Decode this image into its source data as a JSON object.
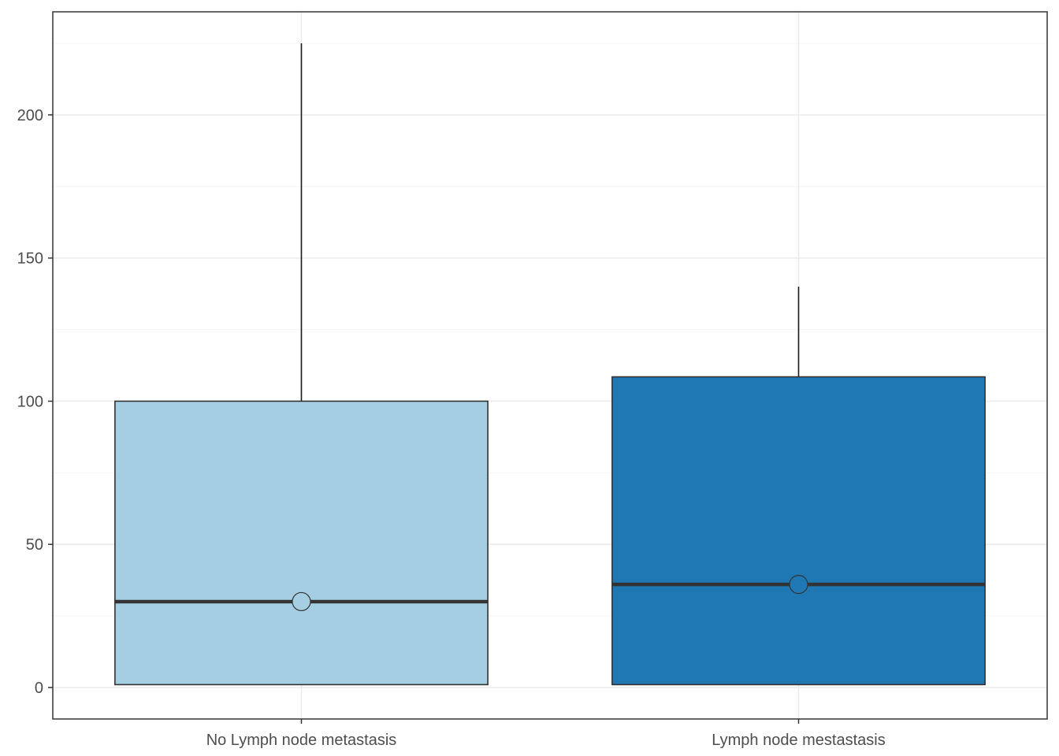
{
  "chart_data": {
    "type": "box",
    "title": "",
    "xlabel": "",
    "ylabel": "",
    "categories": [
      "No Lymph node metastasis",
      "Lymph node mestastasis"
    ],
    "boxes": [
      {
        "category": "No Lymph node metastasis",
        "min": 1,
        "q1": 1,
        "median": 30,
        "q3": 100,
        "max": 225,
        "mean": 30,
        "fill": "#a6cee3"
      },
      {
        "category": "Lymph node mestastasis",
        "min": 1,
        "q1": 1,
        "median": 36,
        "q3": 108.5,
        "max": 140,
        "mean": 36,
        "fill": "#1f78b4"
      }
    ],
    "ylim": [
      -11,
      236
    ],
    "yticks": [
      0,
      50,
      100,
      150,
      200
    ],
    "y_minor_ticks": [
      25,
      75,
      125,
      175,
      225
    ],
    "grid": true,
    "legend": "none",
    "colors": {
      "panel_border": "#333333",
      "grid_major": "#ebebeb",
      "grid_minor": "#f5f5f5",
      "median_line": "#333333",
      "tick_text": "#4d4d4d"
    }
  }
}
